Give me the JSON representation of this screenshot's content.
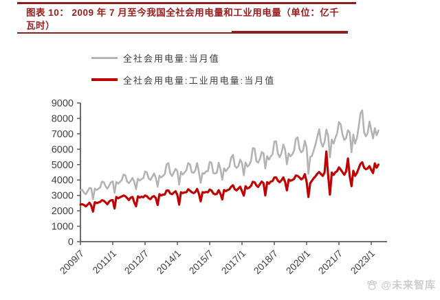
{
  "header": {
    "title_line1": "图表 10：  2009 年 7 月至今我国全社会用电量和工业用电量（单位：亿千",
    "title_line2": "瓦时）",
    "accent_color": "#9c1d1d"
  },
  "watermark": {
    "icon": "paw-icon",
    "text": "@未来智库"
  },
  "chart_data": {
    "type": "line",
    "title": "2009 年 7 月至今我国全社会用电量和工业用电量",
    "unit": "亿千瓦时",
    "freq": "monthly",
    "start": "2009/7",
    "end": "2023/5",
    "grid": false,
    "legend_position": "top",
    "ylim": [
      0,
      9000
    ],
    "ytick_step": 1000,
    "xtick_interval_months": 18,
    "x_tick_labels": [
      "2009/7",
      "2011/1",
      "2012/7",
      "2014/1",
      "2015/7",
      "2017/1",
      "2018/7",
      "2020/1",
      "2021/7",
      "2023/1"
    ],
    "axis_color": "#595959",
    "label_color": "#3f3f3f",
    "series": [
      {
        "name": "全社会用电量:当月值",
        "color": "#b3b3b3",
        "width": 2.6,
        "values": [
          3330,
          3365,
          3170,
          3080,
          3270,
          3490,
          3470,
          2760,
          3445,
          3350,
          3430,
          3520,
          3895,
          3865,
          3590,
          3430,
          3640,
          3855,
          3910,
          3170,
          3880,
          3770,
          3880,
          3990,
          4350,
          4315,
          3905,
          3795,
          3955,
          4130,
          3880,
          3390,
          4090,
          3965,
          4060,
          4120,
          4555,
          4495,
          4110,
          4000,
          4200,
          4430,
          4130,
          3575,
          4275,
          4165,
          4270,
          4385,
          5020,
          5100,
          4445,
          4260,
          4480,
          4725,
          4585,
          3700,
          4530,
          4355,
          4490,
          4640,
          5095,
          5025,
          4505,
          4460,
          4630,
          5100,
          4525,
          3810,
          4450,
          4415,
          4565,
          4570,
          5175,
          5125,
          4460,
          4415,
          4475,
          5130,
          4685,
          4020,
          4760,
          4570,
          4730,
          4885,
          5460,
          5630,
          4915,
          4785,
          4920,
          5320,
          5095,
          4315,
          5140,
          4880,
          4970,
          5245,
          6070,
          6045,
          5220,
          5130,
          5375,
          5815,
          5735,
          4750,
          5555,
          5315,
          5535,
          5665,
          6485,
          6520,
          5720,
          5480,
          5745,
          6300,
          5980,
          5020,
          5730,
          5535,
          5665,
          5905,
          6670,
          6770,
          6020,
          5790,
          5910,
          6545,
          6110,
          4400,
          5495,
          5570,
          5925,
          6350,
          6825,
          7295,
          6455,
          6170,
          6465,
          7280,
          6890,
          5470,
          6630,
          6360,
          6725,
          7035,
          7760,
          7605,
          6945,
          6600,
          6720,
          7235,
          7090,
          5800,
          6945,
          6360,
          6715,
          7450,
          8325,
          8520,
          7090,
          6835,
          7050,
          7800,
          7250,
          6700,
          7370,
          6900,
          7220
        ]
      },
      {
        "name": "全社会用电量:工业用电量:当月值",
        "color": "#c00000",
        "width": 3.2,
        "values": [
          2410,
          2430,
          2380,
          2290,
          2400,
          2520,
          2340,
          1950,
          2560,
          2500,
          2540,
          2580,
          2690,
          2650,
          2550,
          2430,
          2600,
          2680,
          2700,
          2150,
          2900,
          2810,
          2880,
          2930,
          3000,
          2950,
          2830,
          2700,
          2850,
          2900,
          2550,
          2300,
          2940,
          2860,
          2920,
          2880,
          3000,
          2950,
          2820,
          2760,
          2900,
          2960,
          2820,
          2380,
          3080,
          3000,
          3050,
          3060,
          3320,
          3330,
          3130,
          3080,
          3180,
          3270,
          3030,
          2400,
          3210,
          3150,
          3200,
          3210,
          3400,
          3310,
          3210,
          3150,
          3220,
          3420,
          3110,
          2620,
          3210,
          3190,
          3220,
          3200,
          3380,
          3320,
          3130,
          3070,
          3100,
          3340,
          3100,
          2740,
          3350,
          3280,
          3350,
          3400,
          3570,
          3660,
          3400,
          3330,
          3450,
          3570,
          3270,
          2990,
          3600,
          3450,
          3500,
          3620,
          3880,
          3860,
          3660,
          3550,
          3740,
          3900,
          3790,
          3000,
          3860,
          3760,
          3900,
          3930,
          4160,
          4170,
          3950,
          3860,
          3980,
          4170,
          3870,
          3330,
          4030,
          3950,
          4000,
          4070,
          4290,
          4270,
          4160,
          4040,
          4130,
          4380,
          3890,
          2900,
          3790,
          3960,
          4120,
          4250,
          4420,
          4520,
          4380,
          4270,
          4480,
          5850,
          4300,
          3050,
          4480,
          4330,
          4500,
          4580,
          4820,
          4680,
          4500,
          4340,
          4560,
          5400,
          4250,
          3600,
          4600,
          4270,
          4450,
          4750,
          5050,
          5150,
          4800,
          4700,
          4750,
          4900,
          4650,
          4450,
          5080,
          4800,
          5000
        ]
      }
    ]
  }
}
